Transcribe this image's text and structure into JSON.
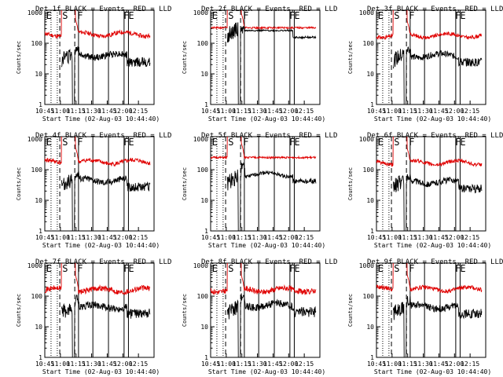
{
  "chart_data": [
    {
      "type": "line",
      "title": "Det 1f BLACK = Events, RED = LLD",
      "xlabel": "Start Time (02-Aug-03 10:44:40)",
      "ylabel": "Counts/sec",
      "xlim": [
        -0.22,
        1.53
      ],
      "ylim": [
        1,
        1200
      ],
      "xticks": [
        "10:45",
        "11:00",
        "11:15",
        "11:30",
        "11:45",
        "12:00",
        "12:15"
      ],
      "yticks": [
        "1",
        "10",
        "100",
        "1000"
      ],
      "markers": [
        "E",
        "S",
        "F",
        "F",
        "E"
      ],
      "series": [
        {
          "name": "LLD",
          "color": "#e00000",
          "level": 200,
          "scale": 0.14,
          "seed": 11,
          "dip": 0,
          "peak_to": 1000
        },
        {
          "name": "Events",
          "color": "#000000",
          "level": 40,
          "scale": 0.22,
          "seed": 12,
          "dip": 0,
          "peak_to": 0,
          "start": 0.05,
          "burst": 1.7,
          "low": 30
        }
      ]
    },
    {
      "type": "line",
      "title": "Det 2f BLACK = Events, RED = LLD",
      "xlabel": "Start Time (02-Aug-03 10:44:40)",
      "ylabel": "Counts/sec",
      "xlim": [
        -0.22,
        1.53
      ],
      "ylim": [
        1,
        1200
      ],
      "xticks": [
        "10:45",
        "11:00",
        "11:15",
        "11:30",
        "11:45",
        "12:00",
        "12:15"
      ],
      "yticks": [
        "1",
        "10",
        "100",
        "1000"
      ],
      "markers": [
        "E",
        "S",
        "F",
        "F",
        "E"
      ],
      "series": [
        {
          "name": "LLD",
          "color": "#e00000",
          "level": 320,
          "scale": 0.06,
          "seed": 21,
          "dip": 0,
          "peak_to": 1000,
          "flat": true
        },
        {
          "name": "Events",
          "color": "#000000",
          "level": 260,
          "scale": 0.05,
          "seed": 22,
          "dip": 0,
          "peak_to": 0,
          "start": 0.05,
          "burst": 1.0,
          "low": 200,
          "flat": true
        }
      ]
    },
    {
      "type": "line",
      "title": "Det 3f BLACK = Events, RED = LLD",
      "xlabel": "Start Time (02-Aug-03 10:44:40)",
      "ylabel": "Counts/sec",
      "xlim": [
        -0.22,
        1.53
      ],
      "ylim": [
        1,
        1200
      ],
      "xticks": [
        "10:45",
        "11:00",
        "11:15",
        "11:30",
        "11:45",
        "12:00",
        "12:15"
      ],
      "yticks": [
        "1",
        "10",
        "100",
        "1000"
      ],
      "markers": [
        "E",
        "S",
        "F",
        "F",
        "E"
      ],
      "series": [
        {
          "name": "LLD",
          "color": "#e00000",
          "level": 180,
          "scale": 0.12,
          "seed": 31,
          "dip": 0,
          "peak_to": 1000
        },
        {
          "name": "Events",
          "color": "#000000",
          "level": 40,
          "scale": 0.2,
          "seed": 32,
          "dip": 0,
          "peak_to": 0,
          "start": 0.05,
          "burst": 1.6,
          "low": 30
        }
      ]
    },
    {
      "type": "line",
      "title": "Det 4f BLACK = Events, RED = LLD",
      "xlabel": "Start Time (02-Aug-03 10:44:40)",
      "ylabel": "Counts/sec",
      "xlim": [
        -0.22,
        1.53
      ],
      "ylim": [
        1,
        1200
      ],
      "xticks": [
        "10:45",
        "11:00",
        "11:15",
        "11:30",
        "11:45",
        "12:00",
        "12:15"
      ],
      "yticks": [
        "1",
        "10",
        "100",
        "1000"
      ],
      "markers": [
        "E",
        "S",
        "F",
        "F",
        "E"
      ],
      "series": [
        {
          "name": "LLD",
          "color": "#e00000",
          "level": 180,
          "scale": 0.14,
          "seed": 41,
          "dip": 0,
          "peak_to": 1000
        },
        {
          "name": "Events",
          "color": "#000000",
          "level": 45,
          "scale": 0.22,
          "seed": 42,
          "dip": 0,
          "peak_to": 0,
          "start": 0.05,
          "burst": 1.7,
          "low": 30
        }
      ]
    },
    {
      "type": "line",
      "title": "Det 5f BLACK = Events, RED = LLD",
      "xlabel": "Start Time (02-Aug-03 10:44:40)",
      "ylabel": "Counts/sec",
      "xlim": [
        -0.22,
        1.53
      ],
      "ylim": [
        1,
        1200
      ],
      "xticks": [
        "10:45",
        "11:00",
        "11:15",
        "11:30",
        "11:45",
        "12:00",
        "12:15"
      ],
      "yticks": [
        "1",
        "10",
        "100",
        "1000"
      ],
      "markers": [
        "E",
        "S",
        "F",
        "F",
        "E"
      ],
      "series": [
        {
          "name": "LLD",
          "color": "#e00000",
          "level": 250,
          "scale": 0.06,
          "seed": 51,
          "dip": 0,
          "peak_to": 1000,
          "flat": true
        },
        {
          "name": "Events",
          "color": "#000000",
          "level": 70,
          "scale": 0.12,
          "seed": 52,
          "dip": 0,
          "peak_to": 0,
          "start": 0.05,
          "burst": 1.8,
          "low": 40
        }
      ]
    },
    {
      "type": "line",
      "title": "Det 6f BLACK = Events, RED = LLD",
      "xlabel": "Start Time (02-Aug-03 10:44:40)",
      "ylabel": "Counts/sec",
      "xlim": [
        -0.22,
        1.53
      ],
      "ylim": [
        1,
        1200
      ],
      "xticks": [
        "10:45",
        "11:00",
        "11:15",
        "11:30",
        "11:45",
        "12:00",
        "12:15"
      ],
      "yticks": [
        "1",
        "10",
        "100",
        "1000"
      ],
      "markers": [
        "E",
        "S",
        "F",
        "F",
        "E"
      ],
      "series": [
        {
          "name": "LLD",
          "color": "#e00000",
          "level": 170,
          "scale": 0.12,
          "seed": 61,
          "dip": 0,
          "peak_to": 1000
        },
        {
          "name": "Events",
          "color": "#000000",
          "level": 40,
          "scale": 0.2,
          "seed": 62,
          "dip": 0,
          "peak_to": 0,
          "start": 0.05,
          "burst": 1.6,
          "low": 30
        }
      ]
    },
    {
      "type": "line",
      "title": "Det 7f BLACK = Events, RED = LLD",
      "xlabel": "Start Time (02-Aug-03 10:44:40)",
      "ylabel": "Counts/sec",
      "xlim": [
        -0.22,
        1.53
      ],
      "ylim": [
        1,
        1200
      ],
      "xticks": [
        "10:45",
        "11:00",
        "11:15",
        "11:30",
        "11:45",
        "12:00",
        "12:15"
      ],
      "yticks": [
        "1",
        "10",
        "100",
        "1000"
      ],
      "markers": [
        "E",
        "S",
        "F",
        "F",
        "E"
      ],
      "series": [
        {
          "name": "LLD",
          "color": "#e00000",
          "level": 160,
          "scale": 0.18,
          "seed": 71,
          "dip": 0,
          "peak_to": 1000
        },
        {
          "name": "Events",
          "color": "#000000",
          "level": 45,
          "scale": 0.24,
          "seed": 72,
          "dip": 0,
          "peak_to": 0,
          "start": 0.05,
          "burst": 1.8,
          "low": 30
        }
      ]
    },
    {
      "type": "line",
      "title": "Det 8f BLACK = Events, RED = LLD",
      "xlabel": "Start Time (02-Aug-03 10:44:40)",
      "ylabel": "Counts/sec",
      "xlim": [
        -0.22,
        1.53
      ],
      "ylim": [
        1,
        1200
      ],
      "xticks": [
        "10:45",
        "11:00",
        "11:15",
        "11:30",
        "11:45",
        "12:00",
        "12:15"
      ],
      "yticks": [
        "1",
        "10",
        "100",
        "1000"
      ],
      "markers": [
        "E",
        "S",
        "F",
        "F",
        "E"
      ],
      "series": [
        {
          "name": "LLD",
          "color": "#e00000",
          "level": 160,
          "scale": 0.18,
          "seed": 81,
          "dip": 0,
          "peak_to": 1000
        },
        {
          "name": "Events",
          "color": "#000000",
          "level": 50,
          "scale": 0.24,
          "seed": 82,
          "dip": 0,
          "peak_to": 0,
          "start": 0.05,
          "burst": 1.8,
          "low": 30
        }
      ]
    },
    {
      "type": "line",
      "title": "Det 9f BLACK = Events, RED = LLD",
      "xlabel": "Start Time (02-Aug-03 10:44:40)",
      "ylabel": "Counts/sec",
      "xlim": [
        -0.22,
        1.53
      ],
      "ylim": [
        1,
        1200
      ],
      "xticks": [
        "10:45",
        "11:00",
        "11:15",
        "11:30",
        "11:45",
        "12:00",
        "12:15"
      ],
      "yticks": [
        "1",
        "10",
        "100",
        "1000"
      ],
      "markers": [
        "E",
        "S",
        "F",
        "F",
        "E"
      ],
      "series": [
        {
          "name": "LLD",
          "color": "#e00000",
          "level": 170,
          "scale": 0.14,
          "seed": 91,
          "dip": 0,
          "peak_to": 1000
        },
        {
          "name": "Events",
          "color": "#000000",
          "level": 45,
          "scale": 0.22,
          "seed": 92,
          "dip": 0,
          "peak_to": 0,
          "start": 0.05,
          "burst": 1.6,
          "low": 30
        }
      ]
    }
  ],
  "figure": {
    "background": "#ffffff",
    "axis_color": "#000000"
  }
}
